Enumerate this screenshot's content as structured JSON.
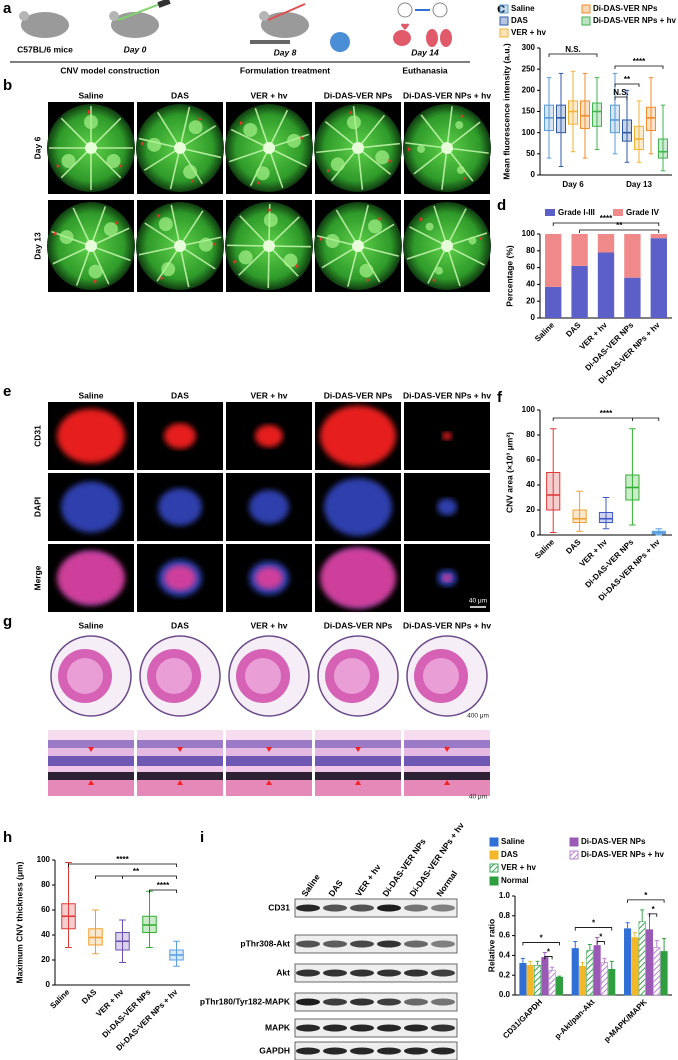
{
  "figure": {
    "panel_labels": [
      "a",
      "b",
      "c",
      "d",
      "e",
      "f",
      "g",
      "h",
      "i"
    ]
  },
  "schematic": {
    "mouse_label": "C57BL/6 mice",
    "days": [
      "Day 0",
      "Day 8",
      "Day 14"
    ],
    "stages": [
      "CNV model construction",
      "Formulation treatment",
      "Euthanasia"
    ]
  },
  "groups": [
    "Saline",
    "DAS",
    "VER + hv",
    "Di-DAS-VER NPs",
    "Di-DAS-VER NPs + hv"
  ],
  "fundus": {
    "rows": [
      "Day 6",
      "Day 13"
    ]
  },
  "immunofluorescence": {
    "rows": [
      "CD31",
      "DAPI",
      "Merge"
    ],
    "scale_bar": "40 μm"
  },
  "histology": {
    "scale_bars": [
      "400 μm",
      "40 μm"
    ]
  },
  "western_blot": {
    "lanes": [
      "Saline",
      "DAS",
      "VER + hv",
      "Di-DAS-VER NPs",
      "Di-DAS-VER NPs + hv",
      "Normal"
    ],
    "rows": [
      "CD31",
      "pThr308-Akt",
      "Akt",
      "pThr180/Tyr182-MAPK",
      "MAPK",
      "GAPDH"
    ]
  },
  "chart_data": [
    {
      "type": "box",
      "y_label": "Mean fluorescence intensity (a.u.)",
      "categories": [
        "Day 6",
        "Day 13"
      ],
      "ylim": [
        0,
        300
      ],
      "yticks": [
        0,
        50,
        100,
        150,
        200,
        250,
        300
      ],
      "series": [
        {
          "name": "Saline",
          "color": "#5b9bd5",
          "boxes": [
            {
              "min": 40,
              "q1": 105,
              "median": 135,
              "q3": 165,
              "max": 230
            },
            {
              "min": 50,
              "q1": 100,
              "median": 130,
              "q3": 165,
              "max": 240
            }
          ]
        },
        {
          "name": "DAS",
          "color": "#2e5aa8",
          "boxes": [
            {
              "min": 20,
              "q1": 100,
              "median": 135,
              "q3": 165,
              "max": 240
            },
            {
              "min": 30,
              "q1": 80,
              "median": 100,
              "q3": 130,
              "max": 200
            }
          ]
        },
        {
          "name": "VER + hv",
          "color": "#f2b134",
          "boxes": [
            {
              "min": 55,
              "q1": 120,
              "median": 150,
              "q3": 175,
              "max": 245
            },
            {
              "min": 30,
              "q1": 60,
              "median": 85,
              "q3": 115,
              "max": 175
            }
          ]
        },
        {
          "name": "Di-DAS-VER NPs",
          "color": "#f28c28",
          "boxes": [
            {
              "min": 40,
              "q1": 110,
              "median": 140,
              "q3": 175,
              "max": 240
            },
            {
              "min": 50,
              "q1": 105,
              "median": 135,
              "q3": 160,
              "max": 230
            }
          ]
        },
        {
          "name": "Di-DAS-VER NPs + hv",
          "color": "#3fb34f",
          "boxes": [
            {
              "min": 60,
              "q1": 115,
              "median": 150,
              "q3": 170,
              "max": 230
            },
            {
              "min": 10,
              "q1": 40,
              "median": 55,
              "q3": 85,
              "max": 165
            }
          ]
        }
      ],
      "annotations": [
        "N.S.",
        "****",
        "**",
        "N.S."
      ]
    },
    {
      "type": "stacked_bar",
      "y_label": "Percentage (%)",
      "categories": [
        "Saline",
        "DAS",
        "VER + hv",
        "Di-DAS-VER NPs",
        "Di-DAS-VER NPs + hv"
      ],
      "ylim": [
        0,
        100
      ],
      "yticks": [
        0,
        20,
        40,
        60,
        80,
        100
      ],
      "series": [
        {
          "name": "Grade I-III",
          "color": "#5b5fc7",
          "values": [
            37,
            62,
            78,
            48,
            95
          ]
        },
        {
          "name": "Grade IV",
          "color": "#f08a8a",
          "values": [
            63,
            38,
            22,
            52,
            5
          ]
        }
      ],
      "annotations": [
        "****",
        "**"
      ]
    },
    {
      "type": "box",
      "y_label": "CNV area (×10³ μm²)",
      "categories": [
        "Saline",
        "DAS",
        "VER + hv",
        "Di-DAS-VER NPs",
        "Di-DAS-VER NPs + hv"
      ],
      "ylim": [
        0,
        100
      ],
      "yticks": [
        0,
        20,
        40,
        60,
        80,
        100
      ],
      "colors": [
        "#e03a3a",
        "#f0a030",
        "#4058c8",
        "#30b030",
        "#5aa0e0"
      ],
      "boxes": [
        {
          "min": 2,
          "q1": 20,
          "median": 32,
          "q3": 50,
          "max": 85
        },
        {
          "min": 3,
          "q1": 10,
          "median": 13,
          "q3": 20,
          "max": 35
        },
        {
          "min": 5,
          "q1": 10,
          "median": 13,
          "q3": 18,
          "max": 30
        },
        {
          "min": 8,
          "q1": 28,
          "median": 38,
          "q3": 48,
          "max": 85
        },
        {
          "min": 0,
          "q1": 1,
          "median": 2,
          "q3": 3,
          "max": 5
        }
      ],
      "annotations": [
        "****"
      ]
    },
    {
      "type": "box",
      "y_label": "Maximum CNV thickness (μm)",
      "categories": [
        "Saline",
        "DAS",
        "VER + hv",
        "Di-DAS-VER NPs",
        "Di-DAS-VER NPs + hv"
      ],
      "ylim": [
        0,
        100
      ],
      "yticks": [
        0,
        20,
        40,
        60,
        80,
        100
      ],
      "colors": [
        "#e03a3a",
        "#f0a030",
        "#6a50b0",
        "#30b030",
        "#5aa0e0"
      ],
      "boxes": [
        {
          "min": 30,
          "q1": 45,
          "median": 55,
          "q3": 65,
          "max": 98
        },
        {
          "min": 25,
          "q1": 32,
          "median": 38,
          "q3": 45,
          "max": 60
        },
        {
          "min": 18,
          "q1": 28,
          "median": 35,
          "q3": 42,
          "max": 52
        },
        {
          "min": 30,
          "q1": 42,
          "median": 48,
          "q3": 55,
          "max": 75
        },
        {
          "min": 15,
          "q1": 20,
          "median": 24,
          "q3": 28,
          "max": 35
        }
      ],
      "annotations": [
        "****",
        "**",
        "****"
      ]
    },
    {
      "type": "bar",
      "y_label": "Relative ratio",
      "categories": [
        "CD31/GAPDH",
        "p-Akt/pan-Akt",
        "p-MAPK/MAPK"
      ],
      "ylim": [
        0,
        1
      ],
      "yticks": [
        {
          "value": 0,
          "label": "0.0"
        },
        0.2,
        0.4,
        0.6,
        0.8,
        {
          "value": 1,
          "label": "1.0"
        }
      ],
      "series": [
        {
          "name": "Saline",
          "color": "#2f6fd6",
          "hatch": false,
          "values": [
            0.32,
            0.47,
            0.67
          ],
          "errors": [
            0.05,
            0.07,
            0.06
          ]
        },
        {
          "name": "DAS",
          "color": "#f2b82a",
          "hatch": false,
          "values": [
            0.3,
            0.29,
            0.58
          ],
          "errors": [
            0.04,
            0.04,
            0.05
          ]
        },
        {
          "name": "VER + hv",
          "color": "#3aa655",
          "hatch": true,
          "values": [
            0.3,
            0.45,
            0.74
          ],
          "errors": [
            0.04,
            0.06,
            0.12
          ]
        },
        {
          "name": "Di-DAS-VER NPs",
          "color": "#9b59b6",
          "hatch": false,
          "values": [
            0.38,
            0.5,
            0.66
          ],
          "errors": [
            0.05,
            0.08,
            0.16
          ]
        },
        {
          "name": "Di-DAS-VER NPs + hv",
          "color": "#b783cf",
          "hatch": true,
          "values": [
            0.25,
            0.33,
            0.48
          ],
          "errors": [
            0.03,
            0.04,
            0.07
          ]
        },
        {
          "name": "Normal",
          "color": "#2e9e3e",
          "hatch": false,
          "values": [
            0.18,
            0.26,
            0.44
          ],
          "errors": [
            0.01,
            0.08,
            0.13
          ]
        }
      ],
      "annotations": [
        "*",
        "*",
        "*",
        "*",
        "*",
        "*"
      ]
    }
  ]
}
